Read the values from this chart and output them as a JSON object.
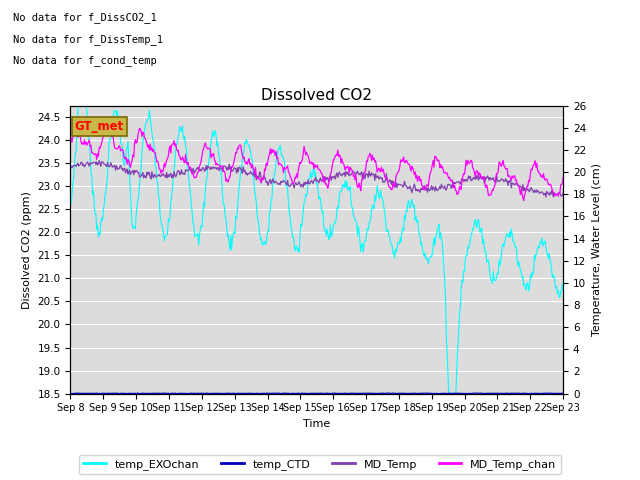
{
  "title": "Dissolved CO2",
  "xlabel": "Time",
  "ylabel_left": "Dissolved CO2 (ppm)",
  "ylabel_right": "Temperature, Water Level (cm)",
  "ylim_left": [
    18.5,
    24.75
  ],
  "ylim_right": [
    0,
    26
  ],
  "yticks_left": [
    18.5,
    19.0,
    19.5,
    20.0,
    20.5,
    21.0,
    21.5,
    22.0,
    22.5,
    23.0,
    23.5,
    24.0,
    24.5
  ],
  "yticks_right": [
    0,
    2,
    4,
    6,
    8,
    10,
    12,
    14,
    16,
    18,
    20,
    22,
    24,
    26
  ],
  "xtick_labels": [
    "Sep 8",
    "Sep 9",
    "Sep 10",
    "Sep 11",
    "Sep 12",
    "Sep 13",
    "Sep 14",
    "Sep 15",
    "Sep 16",
    "Sep 17",
    "Sep 18",
    "Sep 19",
    "Sep 20",
    "Sep 21",
    "Sep 22",
    "Sep 23"
  ],
  "no_data_texts": [
    "No data for f_DissCO2_1",
    "No data for f_DissTemp_1",
    "No data for f_cond_temp"
  ],
  "gt_met_label": "GT_met",
  "bg_color": "#dcdcdc",
  "legend_entries": [
    "temp_EXOchan",
    "temp_CTD",
    "MD_Temp",
    "MD_Temp_chan"
  ],
  "legend_colors": [
    "cyan",
    "#0000bb",
    "#8040b0",
    "magenta"
  ],
  "n_days": 15,
  "n_points": 600
}
